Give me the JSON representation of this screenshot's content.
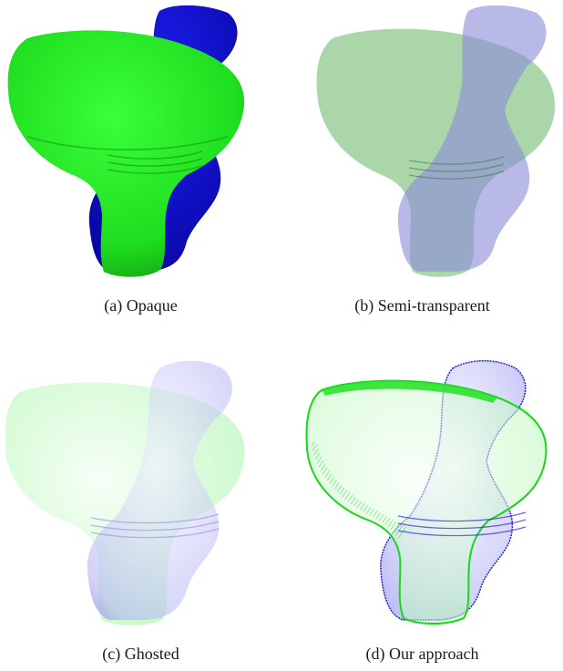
{
  "figure": {
    "panels": [
      {
        "caption": "(a) Opaque"
      },
      {
        "caption": "(b) Semi-transparent"
      },
      {
        "caption": "(c) Ghosted"
      },
      {
        "caption": "(d) Our approach"
      }
    ]
  },
  "colors": {
    "green_shape": "#22e522",
    "blue_shape": "#1010c8",
    "semi_green": "#8ec88e",
    "semi_blue": "#8a8ad8",
    "ghost_green": "#7cf07c",
    "ghost_blue": "#9a9af0",
    "outline_blue": "#2424d0",
    "outline_green": "#18d818"
  }
}
